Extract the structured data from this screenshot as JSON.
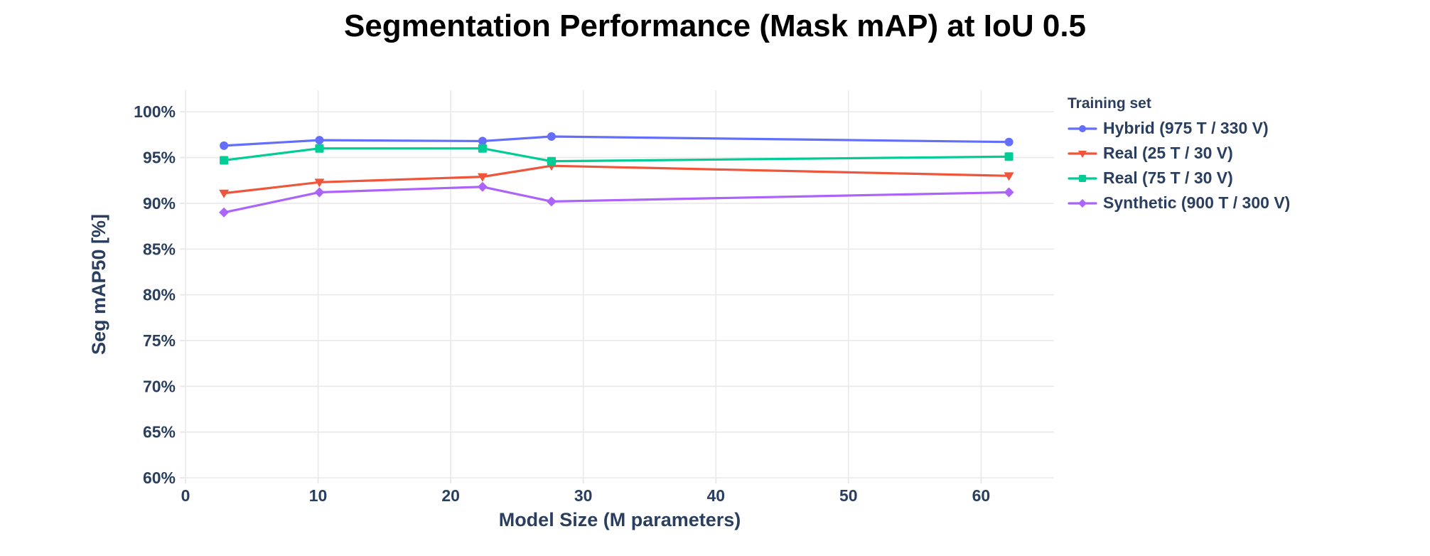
{
  "title": "Segmentation Performance (Mask mAP) at IoU 0.5",
  "colors": {
    "title_text": "#000000",
    "axis_text": "#2a3f5f",
    "gridline": "#e9e9e9",
    "background": "#ffffff",
    "series_hybrid": "#636efa",
    "series_real25": "#ef553b",
    "series_real75": "#00cc96",
    "series_synthetic": "#ab63fa"
  },
  "chart_data": {
    "type": "line",
    "title": "Segmentation Performance (Mask mAP) at IoU 0.5",
    "xlabel": "Model Size (M parameters)",
    "ylabel": "Seg mAP50 [%]",
    "xlim": [
      0,
      65.5
    ],
    "ylim": [
      60,
      102.35
    ],
    "x_ticks": [
      0,
      10,
      20,
      30,
      40,
      50,
      60
    ],
    "y_ticks": [
      60,
      65,
      70,
      75,
      80,
      85,
      90,
      95,
      100
    ],
    "y_tick_suffix": "%",
    "grid": true,
    "legend_position": "right",
    "legend_title": "Training set",
    "x": [
      2.9,
      10.1,
      22.4,
      27.6,
      62.1
    ],
    "series": [
      {
        "name": "Hybrid (975 T / 330 V)",
        "color": "#636efa",
        "marker": "circle",
        "values": [
          96.3,
          96.9,
          96.8,
          97.3,
          96.7
        ]
      },
      {
        "name": "Real (25 T / 30 V)",
        "color": "#ef553b",
        "marker": "triangle-down",
        "values": [
          91.1,
          92.3,
          92.9,
          94.1,
          93.0
        ]
      },
      {
        "name": "Real (75 T / 30 V)",
        "color": "#00cc96",
        "marker": "square",
        "values": [
          94.7,
          96.0,
          96.0,
          94.6,
          95.1
        ]
      },
      {
        "name": "Synthetic (900 T / 300 V)",
        "color": "#ab63fa",
        "marker": "diamond",
        "values": [
          89.0,
          91.2,
          91.8,
          90.2,
          91.2
        ]
      }
    ]
  }
}
